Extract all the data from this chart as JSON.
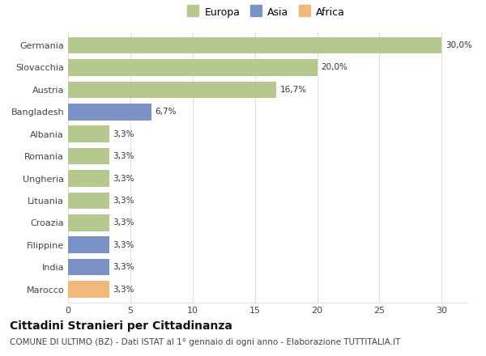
{
  "categories": [
    "Germania",
    "Slovacchia",
    "Austria",
    "Bangladesh",
    "Albania",
    "Romania",
    "Ungheria",
    "Lituania",
    "Croazia",
    "Filippine",
    "India",
    "Marocco"
  ],
  "values": [
    30.0,
    20.0,
    16.7,
    6.7,
    3.3,
    3.3,
    3.3,
    3.3,
    3.3,
    3.3,
    3.3,
    3.3
  ],
  "labels": [
    "30,0%",
    "20,0%",
    "16,7%",
    "6,7%",
    "3,3%",
    "3,3%",
    "3,3%",
    "3,3%",
    "3,3%",
    "3,3%",
    "3,3%",
    "3,3%"
  ],
  "continents": [
    "Europa",
    "Europa",
    "Europa",
    "Asia",
    "Europa",
    "Europa",
    "Europa",
    "Europa",
    "Europa",
    "Asia",
    "Asia",
    "Africa"
  ],
  "colors": {
    "Europa": "#b5c98e",
    "Asia": "#7b93c4",
    "Africa": "#f0b97a"
  },
  "legend_items": [
    "Europa",
    "Asia",
    "Africa"
  ],
  "legend_colors": [
    "#b5c98e",
    "#7b93c4",
    "#f0b97a"
  ],
  "xlim": [
    0,
    32
  ],
  "xticks": [
    0,
    5,
    10,
    15,
    20,
    25,
    30
  ],
  "title": "Cittadini Stranieri per Cittadinanza",
  "subtitle": "COMUNE DI ULTIMO (BZ) - Dati ISTAT al 1° gennaio di ogni anno - Elaborazione TUTTITALIA.IT",
  "title_fontsize": 10,
  "subtitle_fontsize": 7.5,
  "label_fontsize": 7.5,
  "tick_fontsize": 8,
  "background_color": "#ffffff",
  "grid_color": "#e0e0e0",
  "bar_height": 0.75
}
